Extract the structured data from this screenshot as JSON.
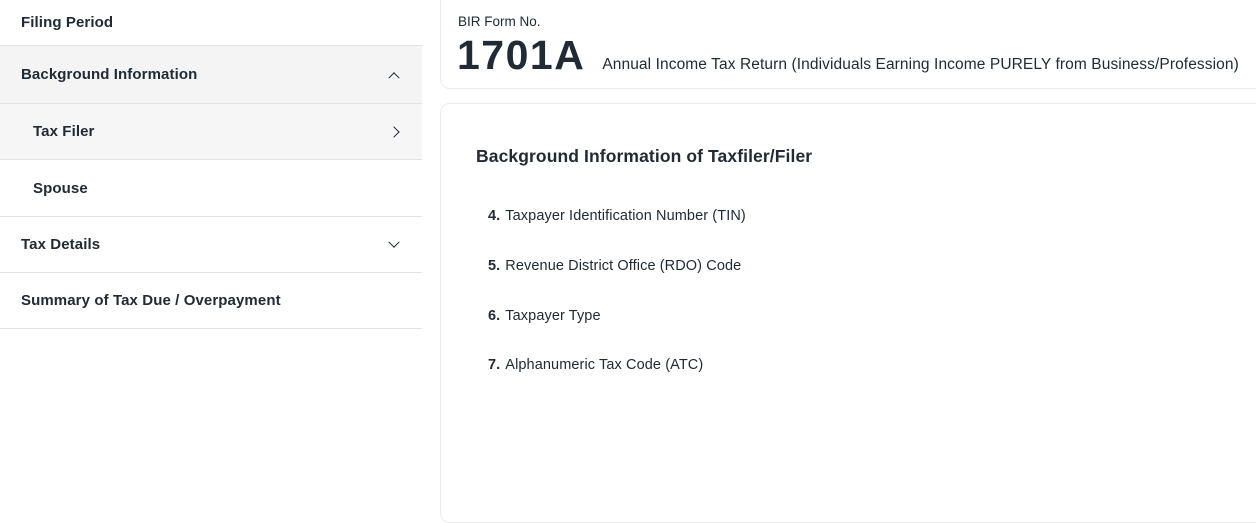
{
  "colors": {
    "text": "#212b36",
    "sidebar_border": "#e3e3e5",
    "card_border": "#ebebec",
    "active_bg": "#f4f4f5",
    "active_sub_bg": "#f6f6f7"
  },
  "sidebar": {
    "items": [
      {
        "label": "Filing Period",
        "level": "top",
        "icon": null
      },
      {
        "label": "Background Information",
        "level": "top",
        "icon": "chevron-up-icon",
        "expanded": true,
        "active": true
      },
      {
        "label": "Tax Filer",
        "level": "sub",
        "icon": "chevron-right-icon",
        "active": true
      },
      {
        "label": "Spouse",
        "level": "sub",
        "icon": null
      },
      {
        "label": "Tax Details",
        "level": "top",
        "icon": "chevron-down-icon",
        "expanded": false
      },
      {
        "label": "Summary of Tax Due / Overpayment",
        "level": "top",
        "icon": null
      }
    ]
  },
  "header": {
    "form_label": "BIR Form No.",
    "form_number": "1701A",
    "form_title": "Annual Income Tax Return (Individuals Earning Income PURELY from Business/Profession)"
  },
  "main": {
    "section_title": "Background Information of Taxfiler/Filer",
    "fields": [
      {
        "number": "4.",
        "label": "Taxpayer Identification Number (TIN)"
      },
      {
        "number": "5.",
        "label": "Revenue District Office (RDO) Code"
      },
      {
        "number": "6.",
        "label": "Taxpayer Type"
      },
      {
        "number": "7.",
        "label": "Alphanumeric Tax Code (ATC)"
      }
    ]
  }
}
